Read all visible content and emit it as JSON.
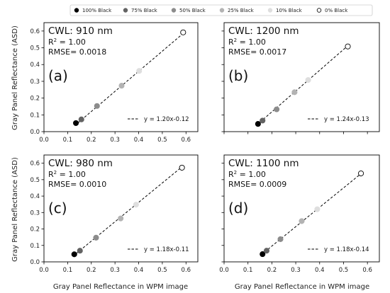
{
  "legend": [
    {
      "label": "100% Black",
      "color": "#000000",
      "hollow": false
    },
    {
      "label": "75% Black",
      "color": "#636363",
      "hollow": false
    },
    {
      "label": "50% Black",
      "color": "#8c8c8c",
      "hollow": false
    },
    {
      "label": "25% Black",
      "color": "#b3b3b3",
      "hollow": false
    },
    {
      "label": "10% Black",
      "color": "#dedede",
      "hollow": false
    },
    {
      "label": "0% Black",
      "color": "#ffffff",
      "hollow": true
    }
  ],
  "shared_labels": {
    "ylabel": "Gray Panel Reflectance (ASD)",
    "xlabel": "Gray Panel Reflectance in WPM image"
  },
  "chart_data": [
    {
      "type": "scatter",
      "panel": "(a)",
      "cwl": "CWL: 910 nm",
      "r2_prefix": "R",
      "r2_sup": "2",
      "r2_value": "= 1.00",
      "rmse": "RMSE= 0.0018",
      "fit_label": "y = 1.20x-0.12",
      "fit": {
        "slope": 1.2,
        "intercept": -0.12
      },
      "xlim": [
        0,
        0.65
      ],
      "ylim": [
        0,
        0.65
      ],
      "xticks": [
        "0.0",
        "0.1",
        "0.2",
        "0.3",
        "0.4",
        "0.5",
        "0.6"
      ],
      "yticks": [
        "0.0",
        "0.1",
        "0.2",
        "0.3",
        "0.4",
        "0.5",
        "0.6"
      ],
      "xlabel": "",
      "ylabel": "Gray Panel Reflectance (ASD)",
      "x": [
        0.135,
        0.158,
        0.224,
        0.328,
        0.402,
        0.588
      ],
      "y": [
        0.051,
        0.073,
        0.153,
        0.274,
        0.362,
        0.592
      ]
    },
    {
      "type": "scatter",
      "panel": "(b)",
      "cwl": "CWL: 1200 nm",
      "r2_prefix": "R",
      "r2_sup": "2",
      "r2_value": "= 1.00",
      "rmse": "RMSE= 0.0017",
      "fit_label": "y = 1.24x-0.13",
      "fit": {
        "slope": 1.24,
        "intercept": -0.13
      },
      "xlim": [
        0,
        0.65
      ],
      "ylim": [
        0,
        0.65
      ],
      "xticks": [],
      "yticks": [],
      "xlabel": "",
      "ylabel": "",
      "x": [
        0.142,
        0.161,
        0.22,
        0.295,
        0.352,
        0.518
      ],
      "y": [
        0.046,
        0.066,
        0.133,
        0.235,
        0.308,
        0.508
      ]
    },
    {
      "type": "scatter",
      "panel": "(c)",
      "cwl": "CWL: 980 nm",
      "r2_prefix": "R",
      "r2_sup": "2",
      "r2_value": "= 1.00",
      "rmse": "RMSE= 0.0010",
      "fit_label": "y = 1.18x-0.11",
      "fit": {
        "slope": 1.18,
        "intercept": -0.11
      },
      "xlim": [
        0,
        0.65
      ],
      "ylim": [
        0,
        0.65
      ],
      "xticks": [
        "0.0",
        "0.1",
        "0.2",
        "0.3",
        "0.4",
        "0.5",
        "0.6"
      ],
      "yticks": [
        "0.0",
        "0.1",
        "0.2",
        "0.3",
        "0.4",
        "0.5",
        "0.6"
      ],
      "xlabel": "Gray Panel Reflectance in WPM image",
      "ylabel": "Gray Panel Reflectance (ASD)",
      "x": [
        0.128,
        0.152,
        0.22,
        0.324,
        0.389,
        0.583
      ],
      "y": [
        0.046,
        0.068,
        0.147,
        0.264,
        0.348,
        0.573
      ]
    },
    {
      "type": "scatter",
      "panel": "(d)",
      "cwl": "CWL: 1100 nm",
      "r2_prefix": "R",
      "r2_sup": "2",
      "r2_value": "= 1.00",
      "rmse": "RMSE= 0.0009",
      "fit_label": "y = 1.18x-0.14",
      "fit": {
        "slope": 1.18,
        "intercept": -0.14
      },
      "xlim": [
        0,
        0.65
      ],
      "ylim": [
        0,
        0.65
      ],
      "xticks": [
        "0.0",
        "0.1",
        "0.2",
        "0.3",
        "0.4",
        "0.5",
        "0.6"
      ],
      "yticks": [],
      "xlabel": "Gray Panel Reflectance in WPM image",
      "ylabel": "",
      "x": [
        0.161,
        0.178,
        0.236,
        0.325,
        0.39,
        0.573
      ],
      "y": [
        0.047,
        0.068,
        0.138,
        0.248,
        0.32,
        0.538
      ]
    }
  ]
}
